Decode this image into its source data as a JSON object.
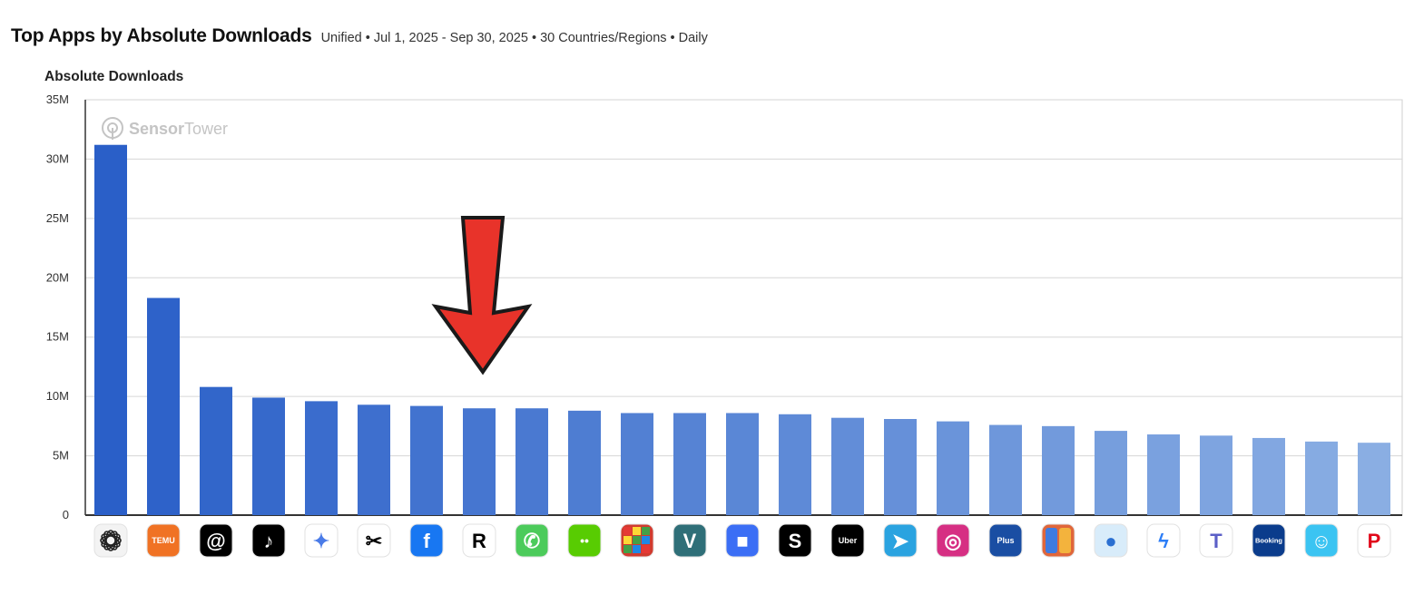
{
  "header": {
    "title": "Top Apps by Absolute Downloads",
    "subtitle": "Unified • Jul 1, 2025 - Sep 30, 2025 • 30 Countries/Regions • Daily"
  },
  "watermark": {
    "brand_a": "Sensor",
    "brand_b": "Tower"
  },
  "annotation": {
    "type": "arrow-down",
    "color": "#e8332a",
    "points_to_category": "Rork"
  },
  "chart_data": {
    "type": "bar",
    "ylabel": "Absolute Downloads",
    "xlabel": "",
    "ylim": [
      0,
      35000000
    ],
    "yticks": [
      0,
      5000000,
      10000000,
      15000000,
      20000000,
      25000000,
      30000000,
      35000000
    ],
    "ytick_labels": [
      "0",
      "5M",
      "10M",
      "15M",
      "20M",
      "25M",
      "30M",
      "35M"
    ],
    "grid": true,
    "bar_color_start": "#2a5fc8",
    "bar_color_end": "#8aaee3",
    "categories": [
      "ChatGPT",
      "Temu",
      "Threads",
      "TikTok",
      "Gemini",
      "CapCut",
      "Facebook",
      "Rork",
      "WhatsApp",
      "Duolingo",
      "Block Blast",
      "Venmo",
      "Roblox",
      "Shein",
      "Uber",
      "Telegram",
      "Instagram",
      "Lidl Plus",
      "Royal Match",
      "Jumia",
      "Messenger",
      "Microsoft Teams",
      "Booking",
      "Waze",
      "Pinterest"
    ],
    "values": [
      31200000,
      18300000,
      10800000,
      9900000,
      9600000,
      9300000,
      9200000,
      9000000,
      9000000,
      8800000,
      8600000,
      8600000,
      8600000,
      8500000,
      8200000,
      8100000,
      7900000,
      7600000,
      7500000,
      7100000,
      6800000,
      6700000,
      6500000,
      6200000,
      6100000
    ],
    "icons": [
      {
        "name": "chatgpt-icon",
        "label": "",
        "bg": "#f3f3f3",
        "fg": "#222222"
      },
      {
        "name": "temu-icon",
        "label": "TEMU",
        "bg": "#f07224",
        "fg": "#ffffff"
      },
      {
        "name": "threads-icon",
        "label": "@",
        "bg": "#000000",
        "fg": "#ffffff"
      },
      {
        "name": "tiktok-icon",
        "label": "♪",
        "bg": "#000000",
        "fg": "#ffffff"
      },
      {
        "name": "gemini-icon",
        "label": "✦",
        "bg": "#ffffff",
        "fg": "#4a7be8"
      },
      {
        "name": "capcut-icon",
        "label": "✂",
        "bg": "#ffffff",
        "fg": "#000000"
      },
      {
        "name": "facebook-icon",
        "label": "f",
        "bg": "#1877f2",
        "fg": "#ffffff"
      },
      {
        "name": "rork-icon",
        "label": "R",
        "bg": "#ffffff",
        "fg": "#000000"
      },
      {
        "name": "whatsapp-icon",
        "label": "✆",
        "bg": "#4ccb5b",
        "fg": "#ffffff"
      },
      {
        "name": "duolingo-icon",
        "label": "••",
        "bg": "#58cc02",
        "fg": "#ffffff"
      },
      {
        "name": "block-blast-icon",
        "label": "",
        "bg": "#d13b2f",
        "fg": "#ffffff"
      },
      {
        "name": "venmo-icon",
        "label": "V",
        "bg": "#2f6f78",
        "fg": "#ffffff"
      },
      {
        "name": "roblox-icon",
        "label": "■",
        "bg": "#3b6ef5",
        "fg": "#ffffff"
      },
      {
        "name": "shein-icon",
        "label": "S",
        "bg": "#000000",
        "fg": "#ffffff"
      },
      {
        "name": "uber-icon",
        "label": "Uber",
        "bg": "#000000",
        "fg": "#ffffff"
      },
      {
        "name": "telegram-icon",
        "label": "➤",
        "bg": "#2aa3e0",
        "fg": "#ffffff"
      },
      {
        "name": "instagram-icon",
        "label": "◎",
        "bg": "#d62f83",
        "fg": "#ffffff"
      },
      {
        "name": "lidl-plus-icon",
        "label": "Plus",
        "bg": "#1a4ea3",
        "fg": "#ffffff"
      },
      {
        "name": "royal-match-icon",
        "label": "",
        "bg": "#e0663a",
        "fg": "#ffffff"
      },
      {
        "name": "jumia-icon",
        "label": "●",
        "bg": "#d8ecfa",
        "fg": "#2a6fd1"
      },
      {
        "name": "messenger-icon",
        "label": "ϟ",
        "bg": "#ffffff",
        "fg": "#2d7ef7"
      },
      {
        "name": "microsoft-teams-icon",
        "label": "T",
        "bg": "#ffffff",
        "fg": "#5b5fc7"
      },
      {
        "name": "booking-icon",
        "label": "Booking",
        "bg": "#0b3c8c",
        "fg": "#ffffff"
      },
      {
        "name": "waze-icon",
        "label": "☺",
        "bg": "#3bc4f2",
        "fg": "#ffffff"
      },
      {
        "name": "pinterest-icon",
        "label": "P",
        "bg": "#ffffff",
        "fg": "#e1081a"
      }
    ]
  }
}
